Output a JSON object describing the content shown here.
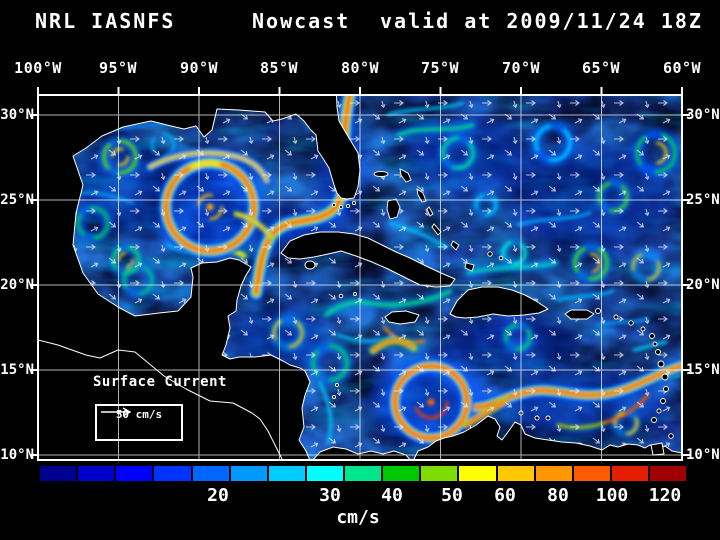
{
  "title": {
    "model": "NRL IASNFS",
    "product": "Nowcast",
    "valid": "valid at 2009/11/24 18Z"
  },
  "map": {
    "layer_label": "Surface Current",
    "scale_label": "50 cm/s",
    "lon_labels": [
      "100°W",
      "95°W",
      "90°W",
      "85°W",
      "80°W",
      "75°W",
      "70°W",
      "65°W",
      "60°W"
    ],
    "lat_labels_left": [
      "30°N",
      "25°N",
      "20°N",
      "15°N",
      "10°N"
    ],
    "lat_labels_right": [
      "30°N",
      "25°N",
      "20°N",
      "15°N",
      "10°N"
    ]
  },
  "colorbar": {
    "units": "cm/s",
    "tick_labels": [
      "20",
      "30",
      "40",
      "50",
      "60",
      "80",
      "100",
      "120"
    ],
    "segments": [
      "#000090",
      "#0000c8",
      "#0000ff",
      "#0033ff",
      "#0066ff",
      "#0099ff",
      "#00ccff",
      "#00ffff",
      "#00e68c",
      "#00c800",
      "#7ddc00",
      "#ffff00",
      "#ffc800",
      "#ff9600",
      "#ff5a00",
      "#e61e00",
      "#a00000"
    ],
    "ocean_base_color": "#000512",
    "land_color": "#000000",
    "coastline_color": "#ffffff"
  }
}
